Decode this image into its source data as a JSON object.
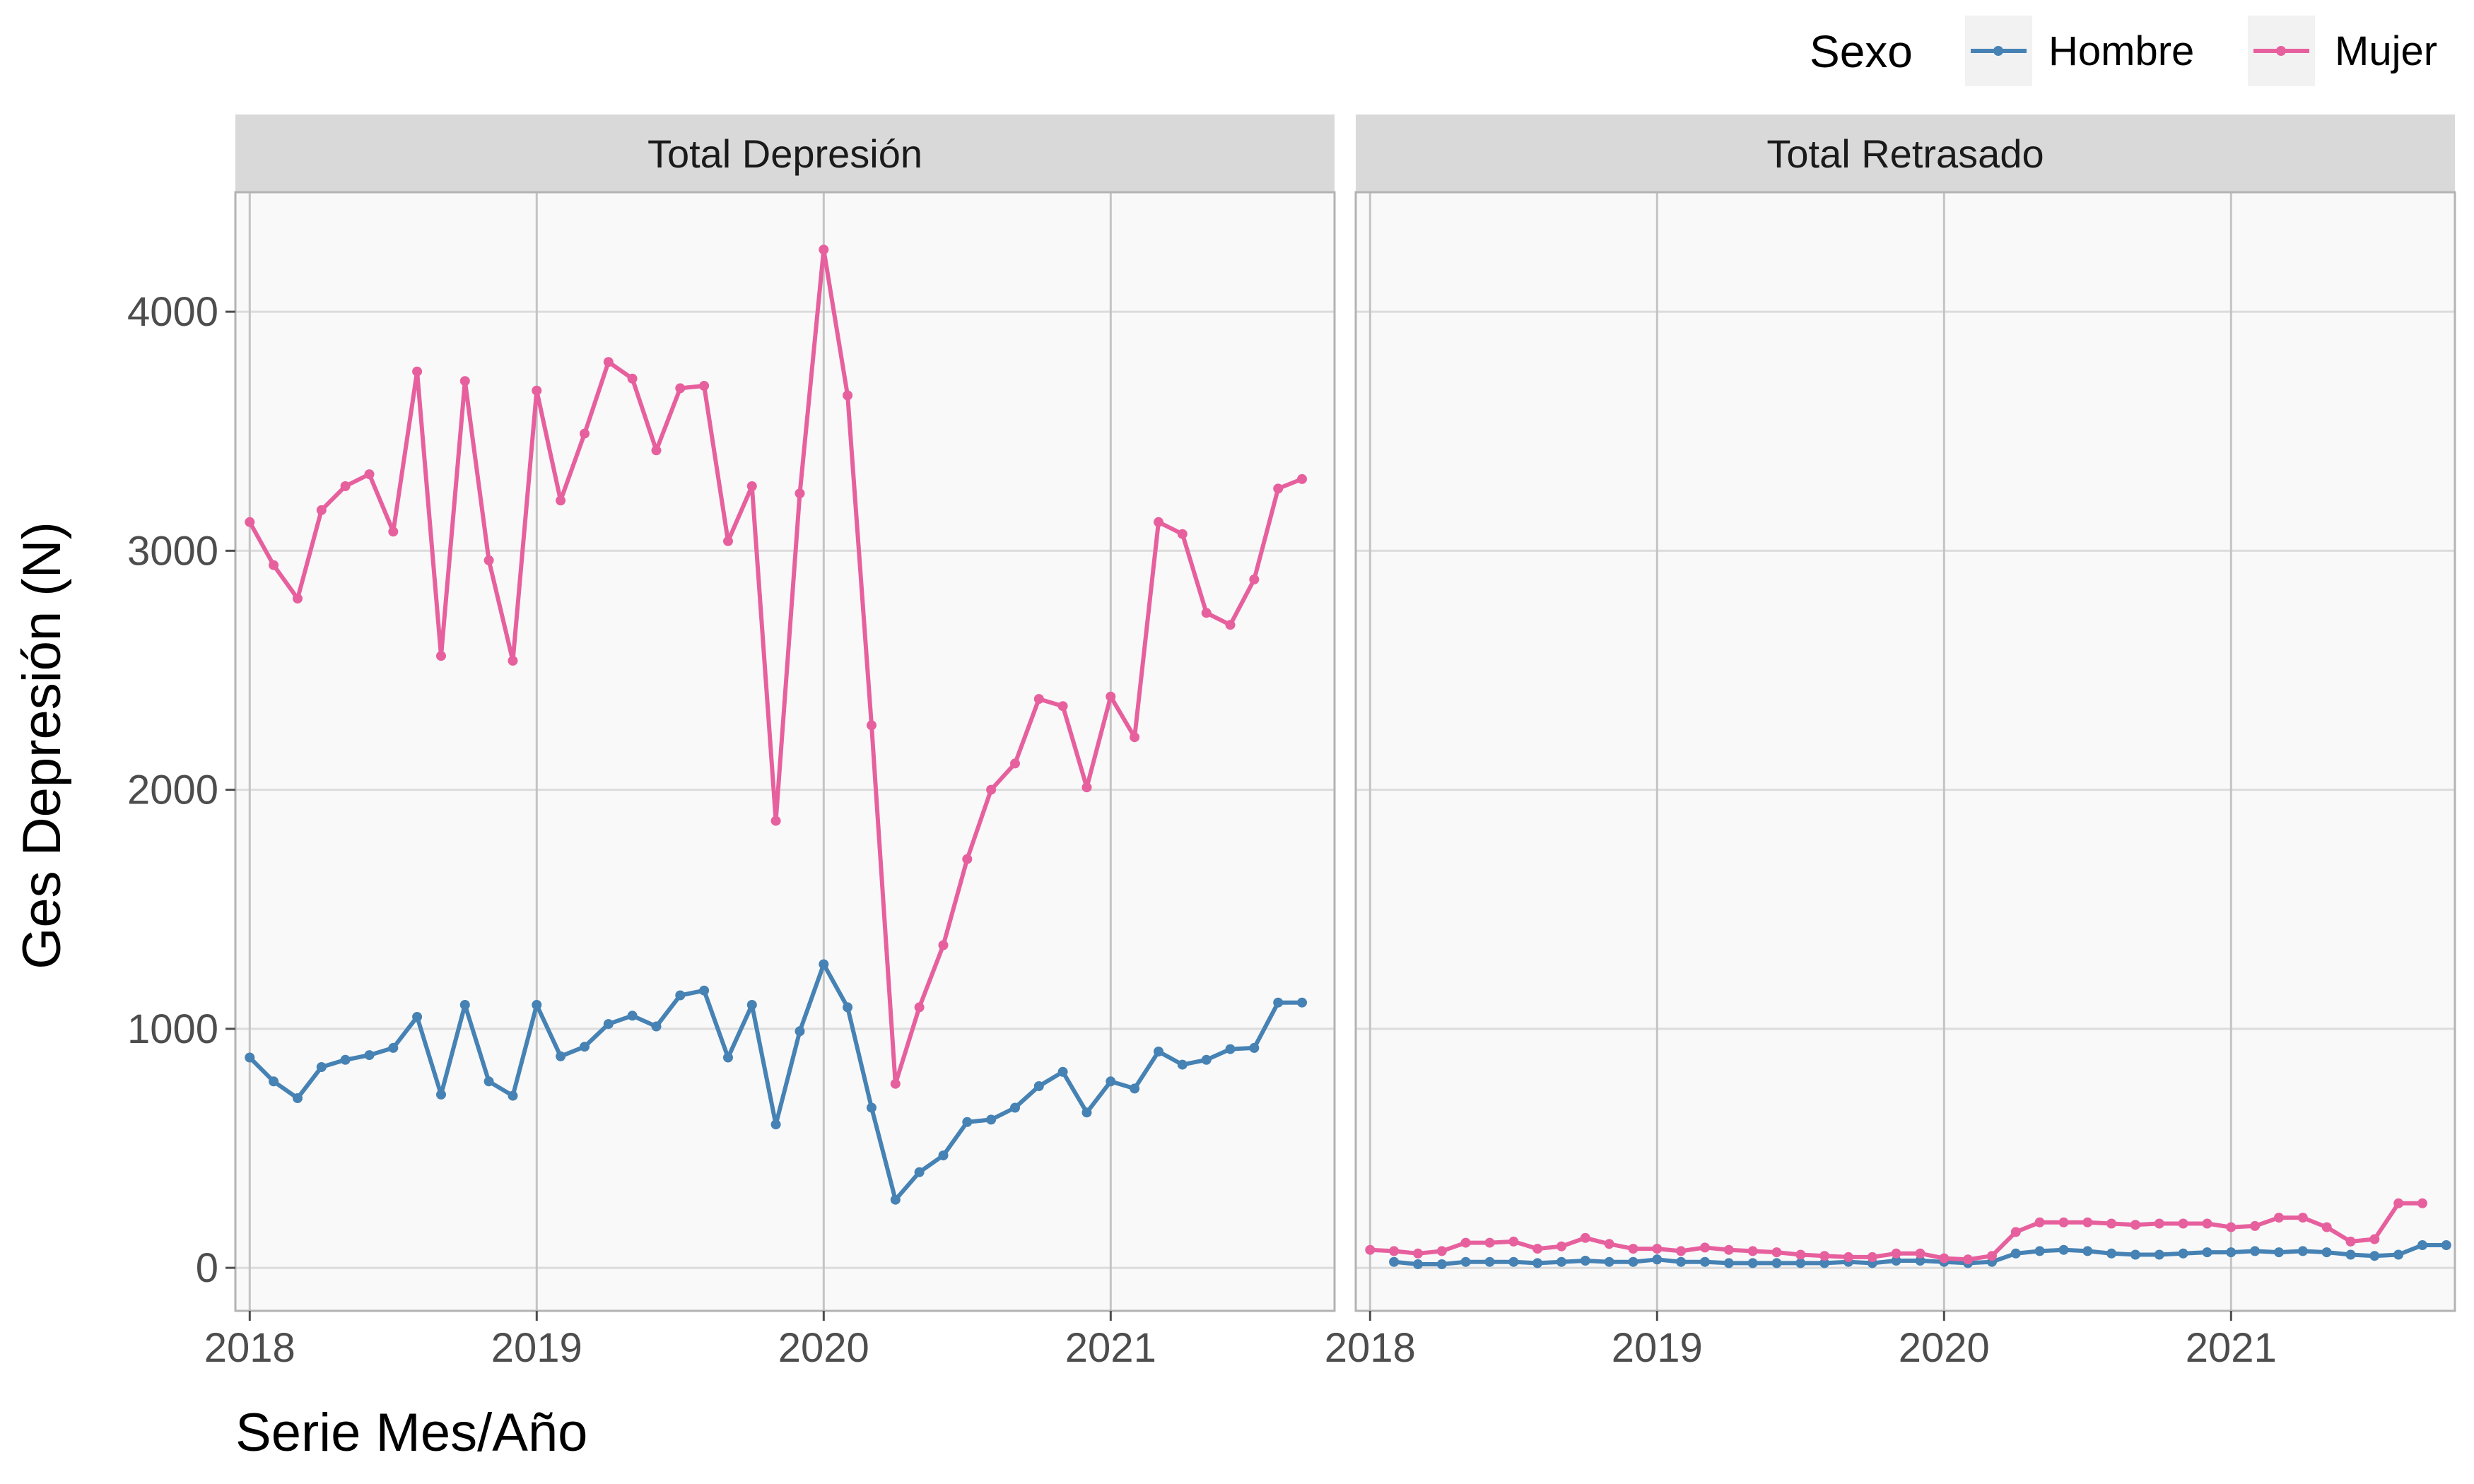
{
  "chart_data": {
    "type": "line",
    "xlabel": "Serie Mes/Año",
    "ylabel": "Ges Depresión (N)",
    "ylim": [
      -180,
      4500
    ],
    "xlim": [
      2017.95,
      2021.78
    ],
    "x_ticks": [
      2018,
      2019,
      2020,
      2021
    ],
    "y_ticks": [
      0,
      1000,
      2000,
      3000,
      4000
    ],
    "grid": true,
    "legend": {
      "title": "Sexo",
      "position": "top-right",
      "entries": [
        "Hombre",
        "Mujer"
      ]
    },
    "colors": {
      "Hombre": "#4682b4",
      "Mujer": "#e7609e"
    },
    "panels": [
      {
        "title": "Total Depresión",
        "series": [
          {
            "name": "Hombre",
            "x_start": 2018.0,
            "x_step_months": 1,
            "values": [
              880,
              780,
              710,
              840,
              870,
              890,
              920,
              1050,
              725,
              1100,
              780,
              720,
              1100,
              885,
              925,
              1020,
              1055,
              1010,
              1140,
              1160,
              880,
              1100,
              600,
              990,
              1270,
              1090,
              670,
              285,
              400,
              470,
              610,
              620,
              670,
              760,
              820,
              650,
              780,
              750,
              905,
              850,
              870,
              915,
              920,
              1110,
              1110
            ]
          },
          {
            "name": "Mujer",
            "x_start": 2018.0,
            "x_step_months": 1,
            "values": [
              3120,
              2940,
              2800,
              3170,
              3270,
              3320,
              3080,
              3750,
              2560,
              3710,
              2960,
              2540,
              3670,
              3210,
              3490,
              3790,
              3720,
              3420,
              3680,
              3690,
              3040,
              3270,
              1870,
              3240,
              4260,
              3650,
              2270,
              770,
              1090,
              1350,
              1710,
              2000,
              2110,
              2380,
              2350,
              2010,
              2390,
              2220,
              3120,
              3070,
              2740,
              2690,
              2880,
              3260,
              3300
            ]
          }
        ]
      },
      {
        "title": "Total Retrasado",
        "series": [
          {
            "name": "Hombre",
            "x_start": 2018.0833,
            "x_step_months": 1,
            "values": [
              25,
              15,
              15,
              25,
              25,
              25,
              20,
              25,
              30,
              25,
              25,
              35,
              25,
              25,
              20,
              20,
              20,
              20,
              20,
              25,
              20,
              30,
              30,
              25,
              20,
              25,
              60,
              70,
              75,
              70,
              60,
              55,
              55,
              60,
              65,
              65,
              70,
              65,
              70,
              65,
              55,
              50,
              55,
              95,
              95
            ]
          },
          {
            "name": "Mujer",
            "x_start": 2018.0,
            "x_step_months": 1,
            "values": [
              75,
              70,
              60,
              70,
              105,
              105,
              110,
              80,
              90,
              125,
              100,
              80,
              80,
              70,
              85,
              75,
              70,
              65,
              55,
              50,
              45,
              45,
              60,
              60,
              40,
              35,
              50,
              150,
              190,
              190,
              190,
              185,
              180,
              185,
              185,
              185,
              170,
              175,
              210,
              210,
              170,
              110,
              120,
              270,
              270
            ]
          }
        ]
      }
    ]
  }
}
